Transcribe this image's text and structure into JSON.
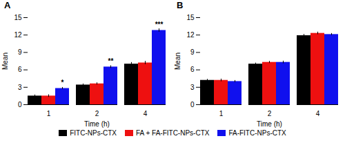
{
  "chart_data": [
    {
      "type": "bar",
      "title": "A",
      "xlabel": "Time (h)",
      "ylabel": "Mean",
      "categories": [
        "1",
        "2",
        "4"
      ],
      "series": [
        {
          "name": "FITC-NPs-CTX",
          "color": "#000000",
          "values": [
            1.5,
            3.4,
            7.0
          ],
          "errors": [
            0.18,
            0.18,
            0.28
          ]
        },
        {
          "name": "FA + FA-FITC-NPs-CTX",
          "color": "#ee1010",
          "values": [
            1.5,
            3.6,
            7.2
          ],
          "errors": [
            0.22,
            0.18,
            0.28
          ]
        },
        {
          "name": "FA-FITC-NPs-CTX",
          "color": "#1010ee",
          "values": [
            2.8,
            6.5,
            12.8
          ],
          "errors": [
            0.18,
            0.22,
            0.28
          ]
        }
      ],
      "annotations": [
        {
          "text": "*",
          "category": "1",
          "series": "FA-FITC-NPs-CTX"
        },
        {
          "text": "**",
          "category": "2",
          "series": "FA-FITC-NPs-CTX"
        },
        {
          "text": "***",
          "category": "4",
          "series": "FA-FITC-NPs-CTX"
        }
      ],
      "ylim": [
        0,
        15
      ],
      "yticks": [
        0,
        3,
        6,
        9,
        12,
        15
      ],
      "legend": "bottom"
    },
    {
      "type": "bar",
      "title": "B",
      "xlabel": "Time (h)",
      "ylabel": "Mean",
      "categories": [
        "1",
        "2",
        "4"
      ],
      "series": [
        {
          "name": "FITC-NPs-CTX",
          "color": "#000000",
          "values": [
            4.2,
            7.0,
            11.9
          ],
          "errors": [
            0.18,
            0.18,
            0.22
          ]
        },
        {
          "name": "FA + FA-FITC-NPs-CTX",
          "color": "#ee1010",
          "values": [
            4.2,
            7.3,
            12.3
          ],
          "errors": [
            0.22,
            0.18,
            0.22
          ]
        },
        {
          "name": "FA-FITC-NPs-CTX",
          "color": "#1010ee",
          "values": [
            4.0,
            7.3,
            12.1
          ],
          "errors": [
            0.18,
            0.22,
            0.18
          ]
        }
      ],
      "ylim": [
        0,
        15
      ],
      "yticks": [
        0,
        3,
        6,
        9,
        12,
        15
      ],
      "legend": "bottom"
    }
  ]
}
